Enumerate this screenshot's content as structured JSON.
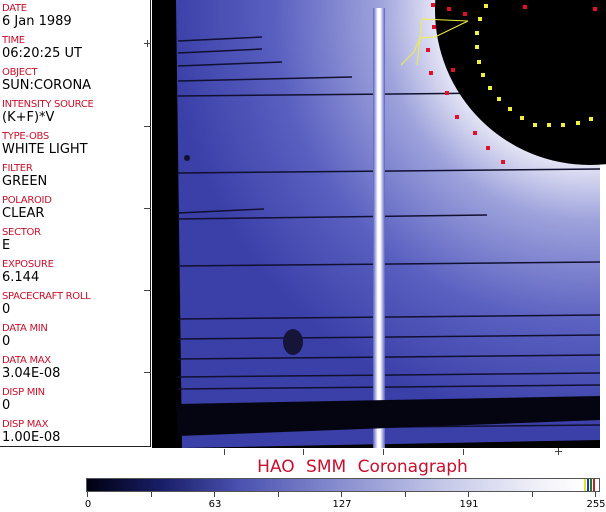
{
  "info_panel": {
    "fields": [
      {
        "label": "DATE",
        "value": "6 Jan 1989"
      },
      {
        "label": "TIME",
        "value": "06:20:25 UT"
      },
      {
        "label": "OBJECT",
        "value": "SUN:CORONA"
      },
      {
        "label": "INTENSITY SOURCE",
        "value": "(K+F)*V"
      },
      {
        "label": "TYPE-OBS",
        "value": "WHITE LIGHT"
      },
      {
        "label": "FILTER",
        "value": "GREEN"
      },
      {
        "label": "POLAROID",
        "value": "CLEAR"
      },
      {
        "label": "SECTOR",
        "value": "E"
      },
      {
        "label": "EXPOSURE",
        "value": "6.144"
      },
      {
        "label": "SPACECRAFT ROLL",
        "value": "0"
      },
      {
        "label": "DATA MIN",
        "value": "0"
      },
      {
        "label": "DATA MAX",
        "value": "3.04E-08"
      },
      {
        "label": "DISP MIN",
        "value": "0"
      },
      {
        "label": "DISP MAX",
        "value": "1.00E-08"
      }
    ]
  },
  "title": "HAO  SMM Coronagraph",
  "colorbar": {
    "tick_labels": [
      "0",
      "63",
      "127",
      "191",
      "255"
    ],
    "colors": {
      "low": "#000010",
      "mid": "#4b52b0",
      "high": "#ffffff"
    }
  },
  "colors": {
    "label_red": "#c8102e",
    "marker_red": "#e0102a",
    "marker_yellow": "#f0f040"
  }
}
